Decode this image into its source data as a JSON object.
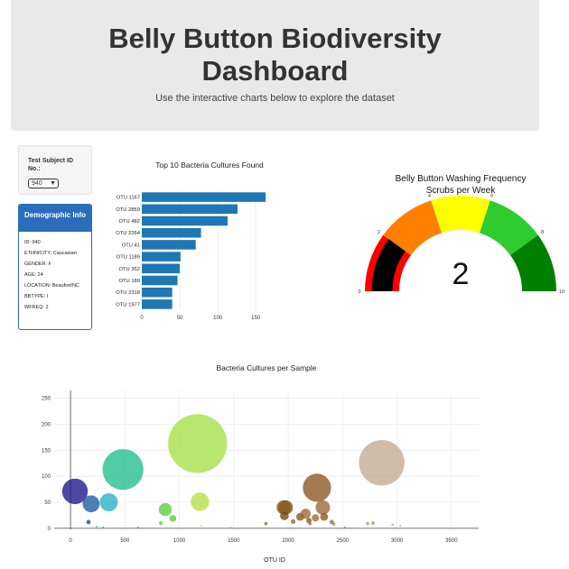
{
  "header": {
    "title_line1": "Belly Button Biodiversity",
    "title_line2": "Dashboard",
    "subtitle": "Use the interactive charts below to explore the dataset"
  },
  "selector": {
    "label": "Test Subject ID No.:",
    "value": "940"
  },
  "demographics": {
    "heading": "Demographic Info",
    "lines": [
      "ID: 940",
      "ETHNICITY: Caucasian",
      "GENDER: F",
      "AGE: 24",
      "LOCATION: Beaufort/NC",
      "BBTYPE: I",
      "WFREQ: 2"
    ]
  },
  "chart_data": [
    {
      "type": "bar",
      "orientation": "horizontal",
      "title": "Top 10 Bacteria Cultures Found",
      "categories": [
        "OTU 1167",
        "OTU 2859",
        "OTU 482",
        "OTU 2264",
        "OTU 41",
        "OTU 1189",
        "OTU 352",
        "OTU 189",
        "OTU 2318",
        "OTU 1977"
      ],
      "values": [
        163,
        126,
        113,
        78,
        71,
        51,
        50,
        47,
        40,
        40
      ],
      "xlim": [
        0,
        170
      ],
      "xticks": [
        0,
        50,
        100,
        150
      ],
      "grid": true,
      "color": "#1f77b4"
    },
    {
      "type": "gauge",
      "title_line1": "Belly Button Washing Frequency",
      "title_line2": "Scrubs per Week",
      "value": 2,
      "range": [
        0,
        10
      ],
      "tick_labels": [
        "0",
        "2",
        "4",
        "6",
        "8",
        "10"
      ],
      "bands": [
        {
          "from": 0,
          "to": 2,
          "color": "#ff0000"
        },
        {
          "from": 2,
          "to": 4,
          "color": "#ff8000"
        },
        {
          "from": 4,
          "to": 6,
          "color": "#ffff00"
        },
        {
          "from": 6,
          "to": 8,
          "color": "#2ecc2e"
        },
        {
          "from": 8,
          "to": 10,
          "color": "#008000"
        }
      ],
      "bar_color": "#000000"
    },
    {
      "type": "scatter",
      "title": "Bacteria Cultures per Sample",
      "xlabel": "OTU ID",
      "xlim": [
        -150,
        3750
      ],
      "ylim": [
        -2,
        265
      ],
      "xticks": [
        0,
        500,
        1000,
        1500,
        2000,
        2500,
        3000,
        3500
      ],
      "yticks": [
        0,
        50,
        100,
        150,
        200,
        250
      ],
      "grid": true,
      "points": [
        {
          "x": 41,
          "y": 71,
          "size": 71,
          "color": "#1f1a8c"
        },
        {
          "x": 189,
          "y": 47,
          "size": 47,
          "color": "#1d5fa8"
        },
        {
          "x": 352,
          "y": 50,
          "size": 50,
          "color": "#2bb1c9"
        },
        {
          "x": 482,
          "y": 113,
          "size": 113,
          "color": "#25bf8e"
        },
        {
          "x": 165,
          "y": 12,
          "size": 12,
          "color": "#1d4fa0"
        },
        {
          "x": 870,
          "y": 36,
          "size": 36,
          "color": "#5ccf3c"
        },
        {
          "x": 940,
          "y": 19,
          "size": 19,
          "color": "#5ccf3c"
        },
        {
          "x": 830,
          "y": 10,
          "size": 10,
          "color": "#5ccf3c"
        },
        {
          "x": 1167,
          "y": 163,
          "size": 163,
          "color": "#a7e04a"
        },
        {
          "x": 1189,
          "y": 51,
          "size": 51,
          "color": "#b7e04a"
        },
        {
          "x": 1200,
          "y": 5,
          "size": 5,
          "color": "#cde04a"
        },
        {
          "x": 1795,
          "y": 9,
          "size": 9,
          "color": "#a0692c"
        },
        {
          "x": 1960,
          "y": 40,
          "size": 40,
          "color": "#8a5a1e"
        },
        {
          "x": 1977,
          "y": 40,
          "size": 40,
          "color": "#8a5a1e"
        },
        {
          "x": 1965,
          "y": 24,
          "size": 24,
          "color": "#7a4a10"
        },
        {
          "x": 2045,
          "y": 13,
          "size": 13,
          "color": "#9b6a30"
        },
        {
          "x": 2110,
          "y": 22,
          "size": 22,
          "color": "#8c5a24"
        },
        {
          "x": 2160,
          "y": 28,
          "size": 28,
          "color": "#9c6b3a"
        },
        {
          "x": 2190,
          "y": 15,
          "size": 15,
          "color": "#8c5a24"
        },
        {
          "x": 2200,
          "y": 9,
          "size": 9,
          "color": "#9c6b3a"
        },
        {
          "x": 2264,
          "y": 78,
          "size": 78,
          "color": "#8c5a24"
        },
        {
          "x": 2250,
          "y": 20,
          "size": 20,
          "color": "#9c6b3a"
        },
        {
          "x": 2318,
          "y": 40,
          "size": 40,
          "color": "#9c6b3a"
        },
        {
          "x": 2330,
          "y": 22,
          "size": 22,
          "color": "#8c5a24"
        },
        {
          "x": 2400,
          "y": 12,
          "size": 12,
          "color": "#9c6b3a"
        },
        {
          "x": 2420,
          "y": 8,
          "size": 8,
          "color": "#a87a4c"
        },
        {
          "x": 2730,
          "y": 9,
          "size": 9,
          "color": "#b59878"
        },
        {
          "x": 2780,
          "y": 10,
          "size": 10,
          "color": "#b59878"
        },
        {
          "x": 2859,
          "y": 126,
          "size": 126,
          "color": "#c4ab95"
        },
        {
          "x": 2960,
          "y": 7,
          "size": 7,
          "color": "#c4ab95"
        },
        {
          "x": 3030,
          "y": 5,
          "size": 5,
          "color": "#c4ab95"
        },
        {
          "x": 240,
          "y": 3,
          "size": 3,
          "color": "#2bb1c9"
        },
        {
          "x": 300,
          "y": 2,
          "size": 2,
          "color": "#2bb1c9"
        },
        {
          "x": 620,
          "y": 2,
          "size": 2,
          "color": "#25bf8e"
        },
        {
          "x": 1470,
          "y": 2,
          "size": 2,
          "color": "#cde04a"
        },
        {
          "x": 2520,
          "y": 2,
          "size": 2,
          "color": "#a87a4c"
        }
      ]
    }
  ]
}
